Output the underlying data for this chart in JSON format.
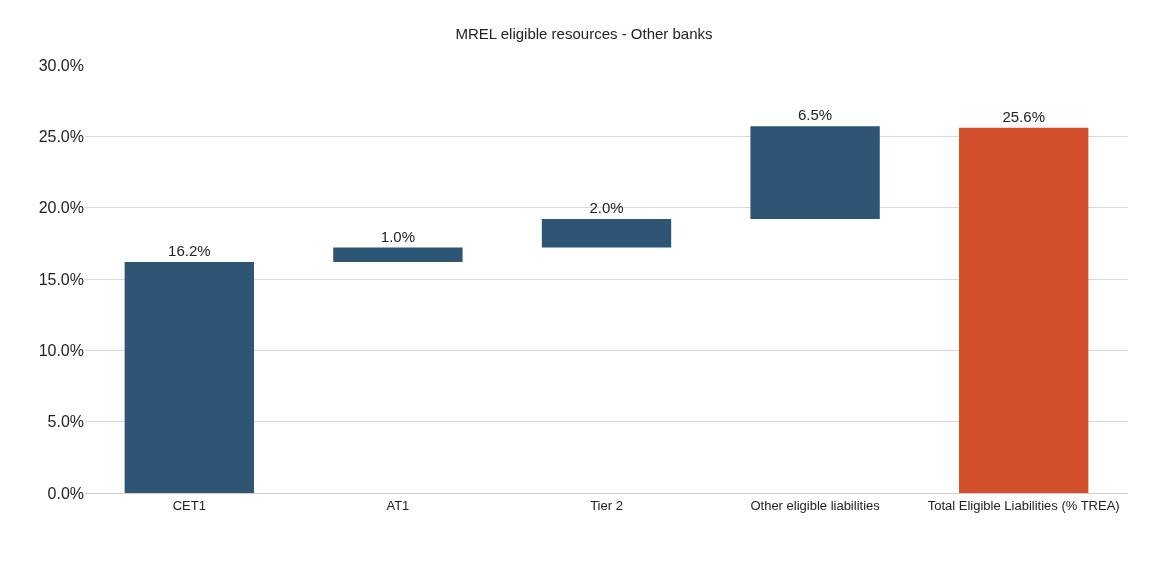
{
  "chart_data": {
    "type": "bar",
    "title": "MREL eligible resources - Other banks",
    "categories": [
      "CET1",
      "AT1",
      "Tier 2",
      "Other eligible liabilities",
      "Total Eligible Liabilities (% TREA)"
    ],
    "values": [
      16.2,
      1.0,
      2.0,
      6.5,
      25.6
    ],
    "base": [
      0,
      16.2,
      17.2,
      19.2,
      0
    ],
    "colors": [
      "#2e5573",
      "#2e5573",
      "#2e5573",
      "#2e5573",
      "#d34f2b"
    ],
    "value_labels": [
      "16.2%",
      "1.0%",
      "2.0%",
      "6.5%",
      "25.6%"
    ],
    "ylim": [
      0,
      30
    ],
    "yticks": [
      {
        "value": 0,
        "label": "0.0%"
      },
      {
        "value": 5,
        "label": "5.0%"
      },
      {
        "value": 10,
        "label": "10.0%"
      },
      {
        "value": 15,
        "label": "15.0%"
      },
      {
        "value": 20,
        "label": "20.0%"
      },
      {
        "value": 25,
        "label": "25.0%"
      },
      {
        "value": 30,
        "label": "30.0%"
      }
    ],
    "grid": "y"
  }
}
